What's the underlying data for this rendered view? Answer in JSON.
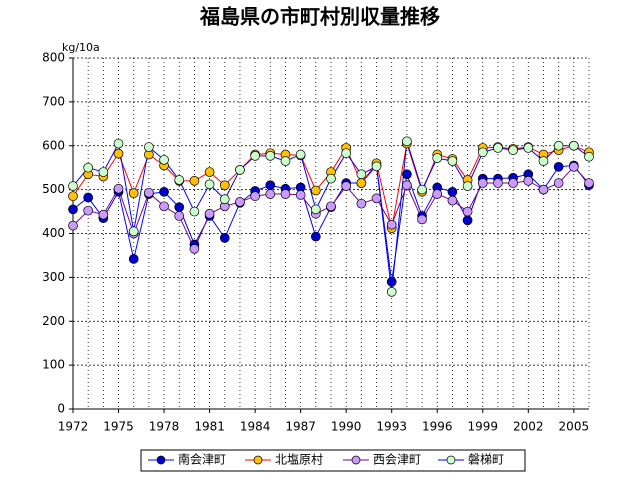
{
  "chart_data": {
    "type": "line",
    "title": "福島県の市町村別収量推移",
    "y_label": "kg/10a",
    "x": [
      1972,
      1973,
      1974,
      1975,
      1976,
      1977,
      1978,
      1979,
      1980,
      1981,
      1982,
      1983,
      1984,
      1985,
      1986,
      1987,
      1988,
      1989,
      1990,
      1991,
      1992,
      1993,
      1994,
      1995,
      1996,
      1997,
      1998,
      1999,
      2000,
      2001,
      2002,
      2003,
      2004,
      2005,
      2006
    ],
    "xlim": [
      1972,
      2006
    ],
    "xticks": [
      1972,
      1975,
      1978,
      1981,
      1984,
      1987,
      1990,
      1993,
      1996,
      1999,
      2002,
      2005
    ],
    "ylim": [
      0,
      800
    ],
    "yticks": [
      0,
      100,
      200,
      300,
      400,
      500,
      600,
      700,
      800
    ],
    "grid": true,
    "legend": "bottom",
    "series": [
      {
        "name": "南会津町",
        "color": "#0000cc",
        "line_color": "#0000ff",
        "values": [
          455,
          482,
          435,
          495,
          342,
          490,
          495,
          460,
          375,
          440,
          390,
          470,
          497,
          510,
          502,
          505,
          393,
          460,
          515,
          515,
          555,
          290,
          535,
          440,
          505,
          495,
          430,
          525,
          525,
          527,
          535,
          500,
          552,
          555,
          510
        ]
      },
      {
        "name": "北塩原村",
        "color": "#ffc000",
        "line_color": "#ff0000",
        "values": [
          485,
          535,
          530,
          582,
          492,
          580,
          555,
          520,
          520,
          540,
          510,
          545,
          580,
          583,
          580,
          578,
          498,
          540,
          595,
          515,
          560,
          412,
          605,
          495,
          580,
          570,
          522,
          595,
          597,
          593,
          597,
          580,
          590,
          600,
          585
        ]
      },
      {
        "name": "西会津町",
        "color": "#cc99ff",
        "line_color": "#800080",
        "values": [
          418,
          452,
          443,
          502,
          400,
          493,
          462,
          440,
          365,
          445,
          462,
          472,
          485,
          490,
          490,
          488,
          445,
          462,
          508,
          468,
          480,
          420,
          510,
          432,
          490,
          475,
          450,
          515,
          515,
          515,
          520,
          500,
          515,
          552,
          515
        ]
      },
      {
        "name": "磐梯町",
        "color": "#ccffcc",
        "line_color": "#0000ff",
        "values": [
          508,
          550,
          540,
          605,
          405,
          597,
          568,
          522,
          450,
          512,
          478,
          545,
          577,
          577,
          565,
          580,
          455,
          525,
          583,
          535,
          553,
          267,
          610,
          500,
          572,
          565,
          508,
          585,
          595,
          590,
          595,
          565,
          600,
          600,
          575
        ]
      }
    ]
  }
}
